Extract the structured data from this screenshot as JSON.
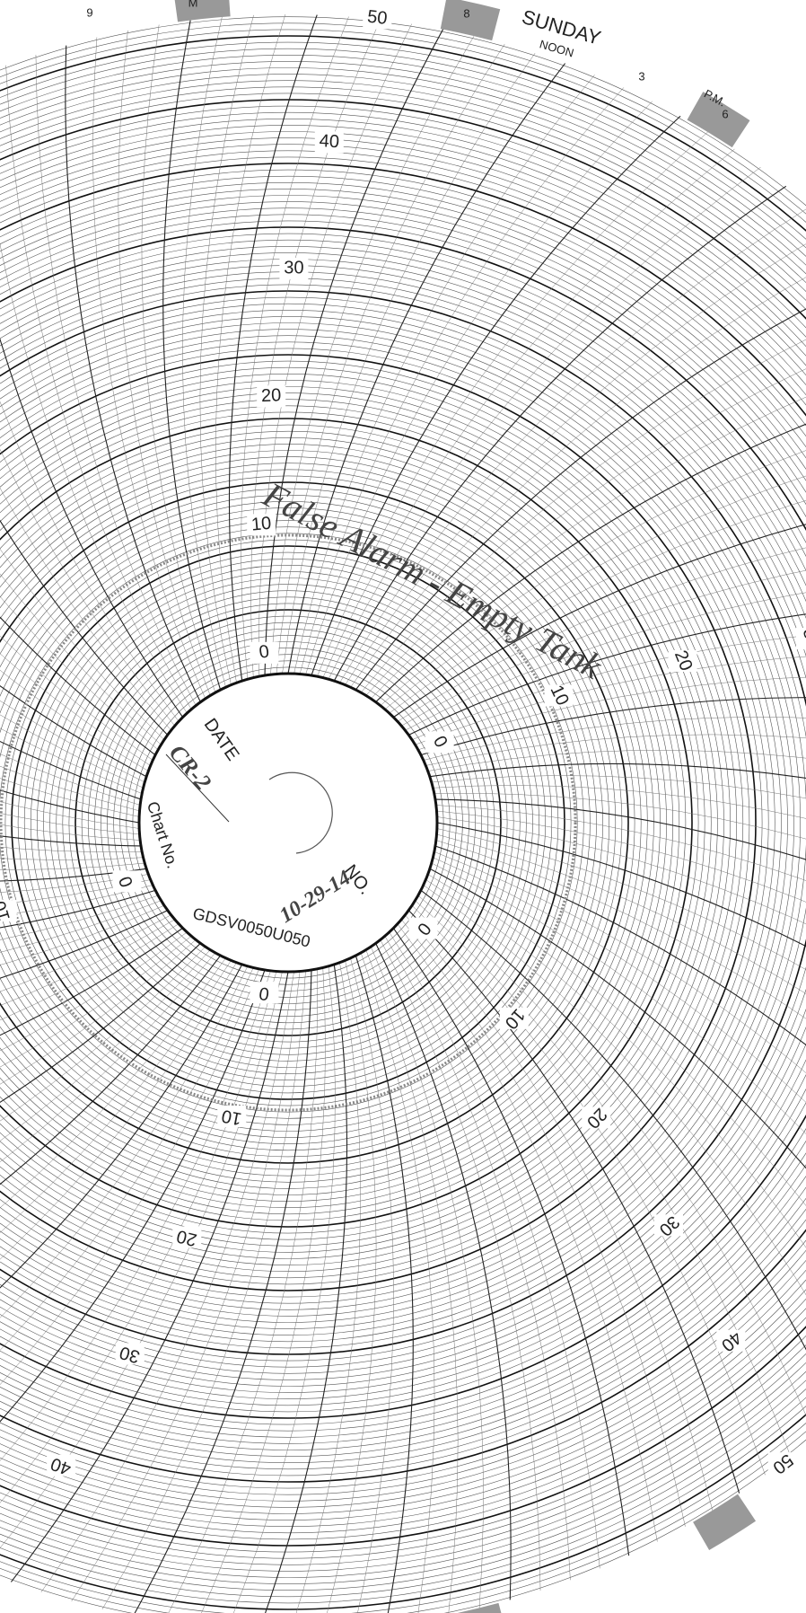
{
  "header": {
    "day": "SUNDAY",
    "noon": "NOON",
    "pm": "P.M."
  },
  "hours": [
    "9",
    "8",
    "3",
    "6",
    "M"
  ],
  "scale_labels": [
    "0",
    "10",
    "20",
    "30",
    "40",
    "50"
  ],
  "hub": {
    "date_label": "DATE",
    "date_value": "CR-2",
    "chart_label": "Chart No.",
    "chart_number": "GDSV0050U050",
    "number_label": "NO.",
    "number_value": "10-29-14"
  },
  "annotation": "False Alarm - Empty Tank"
}
